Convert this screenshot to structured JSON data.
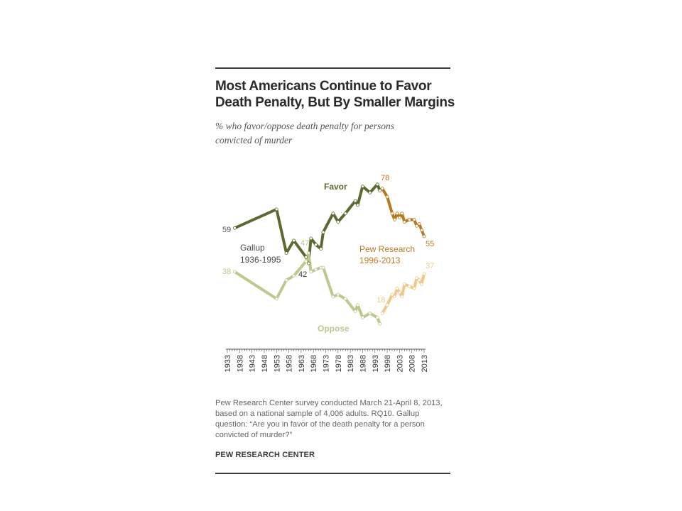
{
  "title_line1": "Most Americans Continue to Favor",
  "title_line2": "Death Penalty, But By Smaller Margins",
  "subtitle_line1": "% who favor/oppose death penalty for persons",
  "subtitle_line2": "convicted of murder",
  "note_lines": [
    "Pew Research Center survey conducted March 21-April 8, 2013,",
    "based on a national sample of 4,006 adults. RQ10. Gallup",
    "question: “Are you in favor of the death penalty for a person",
    "convicted of murder?”"
  ],
  "source": "PEW RESEARCH CENTER",
  "colors": {
    "favor_gallup": "#5b6a2e",
    "oppose_gallup": "#bcc98c",
    "favor_pew": "#b97a1e",
    "oppose_pew": "#f0c98a"
  },
  "chart_data": {
    "type": "line",
    "title": "Most Americans Continue to Favor Death Penalty, But By Smaller Margins",
    "subtitle": "% who favor/oppose death penalty for persons convicted of murder",
    "x_tick_labels": [
      "1933",
      "1938",
      "1943",
      "1948",
      "1953",
      "1958",
      "1963",
      "1968",
      "1973",
      "1978",
      "1983",
      "1988",
      "1993",
      "1998",
      "2003",
      "2008",
      "2013"
    ],
    "xlim": [
      1933,
      2013
    ],
    "ylim": [
      10,
      85
    ],
    "grid": false,
    "legend": "inline labels",
    "annotations": [
      {
        "text": "Favor",
        "series": "favor"
      },
      {
        "text": "Oppose",
        "series": "oppose"
      },
      {
        "text": "Gallup",
        "line": 1
      },
      {
        "text": "1936-1995",
        "line": 2
      },
      {
        "text": "Pew Research",
        "line": 1
      },
      {
        "text": "1996-2013",
        "line": 2
      }
    ],
    "value_labels": [
      "59",
      "38",
      "47",
      "42",
      "78",
      "55",
      "18",
      "37"
    ],
    "series": [
      {
        "name": "Favor",
        "source": "Gallup 1936-1995",
        "x": [
          1936,
          1953,
          1957,
          1960,
          1965,
          1966,
          1967,
          1969,
          1971,
          1972,
          1976,
          1978,
          1981,
          1985,
          1986,
          1988,
          1991,
          1994,
          1995
        ],
        "y": [
          59,
          68,
          47,
          53,
          45,
          42,
          54,
          51,
          49,
          57,
          66,
          62,
          66,
          72,
          70,
          79,
          76,
          80,
          77
        ]
      },
      {
        "name": "Oppose",
        "source": "Gallup 1936-1995",
        "x": [
          1936,
          1953,
          1957,
          1960,
          1965,
          1966,
          1967,
          1969,
          1971,
          1972,
          1976,
          1978,
          1981,
          1985,
          1986,
          1988,
          1991,
          1994,
          1995
        ],
        "y": [
          38,
          25,
          34,
          36,
          43,
          47,
          38,
          39,
          40,
          40,
          26,
          27,
          25,
          19,
          22,
          16,
          18,
          16,
          13
        ]
      },
      {
        "name": "Favor",
        "source": "Pew Research 1996-2013",
        "x": [
          1996,
          1998,
          2000,
          2001,
          2002,
          2003,
          2004,
          2005,
          2007,
          2009,
          2010,
          2011,
          2012,
          2013
        ],
        "y": [
          78,
          74,
          66,
          63,
          66,
          64,
          66,
          62,
          63,
          63,
          60,
          61,
          58,
          55
        ]
      },
      {
        "name": "Oppose",
        "source": "Pew Research 1996-2013",
        "x": [
          1996,
          1998,
          2000,
          2001,
          2002,
          2003,
          2004,
          2005,
          2007,
          2009,
          2010,
          2011,
          2012,
          2013
        ],
        "y": [
          18,
          22,
          27,
          26,
          30,
          28,
          26,
          32,
          31,
          30,
          35,
          34,
          32,
          37
        ]
      }
    ]
  }
}
